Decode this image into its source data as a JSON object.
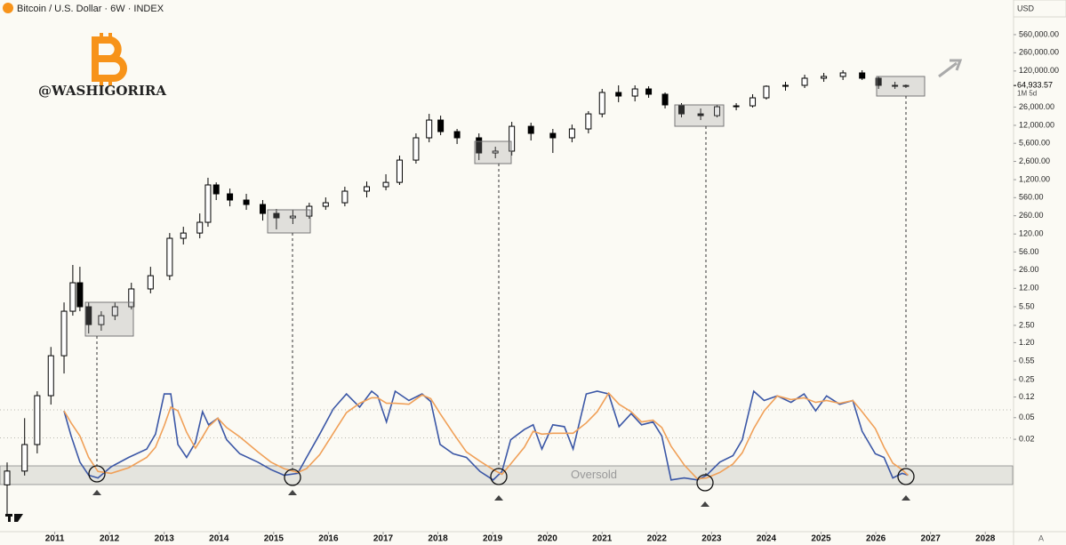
{
  "header": {
    "title": "Bitcoin / U.S. Dollar · 6W · INDEX"
  },
  "watermark": "@WASHIGORIRA",
  "auto_button": "A",
  "chart_data": [
    {
      "type": "candlestick",
      "currency": "USD",
      "log_scale": true,
      "up_color": "#ffffff",
      "down_color": "#000000",
      "x": [
        2010.13,
        2010.45,
        2010.68,
        2010.93,
        2011.17,
        2011.33,
        2011.46,
        2011.62,
        2011.85,
        2012.1,
        2012.4,
        2012.75,
        2013.1,
        2013.35,
        2013.65,
        2013.8,
        2013.95,
        2014.2,
        2014.5,
        2014.8,
        2015.05,
        2015.35,
        2015.65,
        2015.95,
        2016.3,
        2016.7,
        2017.05,
        2017.3,
        2017.6,
        2017.84,
        2018.05,
        2018.35,
        2018.75,
        2019.05,
        2019.35,
        2019.7,
        2020.1,
        2020.45,
        2020.75,
        2021.0,
        2021.3,
        2021.6,
        2021.85,
        2022.15,
        2022.45,
        2022.8,
        2023.1,
        2023.45,
        2023.75,
        2024.0,
        2024.35,
        2024.7,
        2025.05,
        2025.4,
        2025.75,
        2026.05,
        2026.35,
        2026.55
      ],
      "open": [
        0.0029,
        0.0052,
        0.016,
        0.127,
        0.69,
        4.55,
        15.2,
        5.5,
        2.58,
        3.77,
        5.5,
        11.7,
        20.5,
        100,
        125,
        197,
        960,
        658,
        506,
        419,
        287,
        238,
        256,
        388,
        451,
        737,
        890,
        1070,
        2750,
        7070,
        15000,
        9200,
        7070,
        3720,
        4020,
        11500,
        8530,
        7070,
        10300,
        19500,
        48300,
        41500,
        56100,
        44800,
        28500,
        19500,
        18100,
        26400,
        27400,
        38500,
        62800,
        65300,
        88300,
        95200,
        110700,
        88300,
        65300,
        62800
      ],
      "high": [
        0.0075,
        0.049,
        0.153,
        1.0,
        6.6,
        32.3,
        29.9,
        6.6,
        4.55,
        6.6,
        15.2,
        29.9,
        125,
        163,
        287,
        1300,
        1070,
        824,
        658,
        506,
        347,
        334,
        451,
        566,
        890,
        1110,
        1510,
        3330,
        8530,
        19500,
        18100,
        10300,
        8530,
        4850,
        13900,
        13400,
        10300,
        12400,
        21900,
        56100,
        65300,
        65300,
        62800,
        48300,
        30700,
        24500,
        28500,
        30700,
        44800,
        65300,
        75900,
        102600,
        110700,
        124000,
        124000,
        95200,
        75900,
        67800
      ],
      "low": [
        0.00078,
        0.0043,
        0.011,
        0.087,
        0.325,
        3.77,
        4.55,
        1.77,
        1.99,
        3.12,
        4.9,
        9.7,
        17.0,
        77,
        100,
        163,
        506,
        388,
        334,
        212,
        146,
        183,
        229,
        334,
        388,
        566,
        765,
        960,
        2370,
        5850,
        7900,
        5440,
        2750,
        2970,
        3330,
        6310,
        3720,
        5850,
        8530,
        16800,
        32000,
        33100,
        38500,
        24500,
        16800,
        15000,
        16800,
        22700,
        25500,
        35700,
        52100,
        58300,
        75900,
        81900,
        81900,
        56100,
        56100,
        58300
      ],
      "close": [
        0.0052,
        0.016,
        0.127,
        0.69,
        4.55,
        15.2,
        5.5,
        2.58,
        3.77,
        5.5,
        11.7,
        20.5,
        100,
        125,
        197,
        960,
        658,
        506,
        419,
        287,
        238,
        256,
        388,
        451,
        737,
        890,
        1070,
        2750,
        7070,
        15000,
        9200,
        7070,
        3720,
        4020,
        11500,
        8530,
        7070,
        10300,
        19500,
        48300,
        41500,
        56100,
        44800,
        28500,
        19500,
        18100,
        26400,
        27400,
        38500,
        62800,
        65300,
        88300,
        95200,
        110700,
        88300,
        65300,
        62800,
        64933.57
      ],
      "last_price": {
        "value": 64933.57,
        "label": "64,933.57"
      },
      "countdown": "1M 5d",
      "xlim": [
        2010,
        2028.5
      ],
      "xticks": [
        2011,
        2012,
        2013,
        2014,
        2015,
        2016,
        2017,
        2018,
        2019,
        2020,
        2021,
        2022,
        2023,
        2024,
        2025,
        2026,
        2027,
        2028
      ],
      "ylim": [
        0.00037,
        2430000
      ],
      "yticks": [
        {
          "value": 560000,
          "label": "560,000.00"
        },
        {
          "value": 260000,
          "label": "260,000.00"
        },
        {
          "value": 120000,
          "label": "120,000.00"
        },
        {
          "value": 26000,
          "label": "26,000.00"
        },
        {
          "value": 12000,
          "label": "12,000.00"
        },
        {
          "value": 5600,
          "label": "5,600.00"
        },
        {
          "value": 2600,
          "label": "2,600.00"
        },
        {
          "value": 1200,
          "label": "1,200.00"
        },
        {
          "value": 560,
          "label": "560.00"
        },
        {
          "value": 260,
          "label": "260.00"
        },
        {
          "value": 120,
          "label": "120.00"
        },
        {
          "value": 56,
          "label": "56.00"
        },
        {
          "value": 26,
          "label": "26.00"
        },
        {
          "value": 12,
          "label": "12.00"
        },
        {
          "value": 5.5,
          "label": "5.50"
        },
        {
          "value": 2.5,
          "label": "2.50"
        },
        {
          "value": 1.2,
          "label": "1.20"
        },
        0.55,
        0.25,
        0.12,
        0.05,
        0.02
      ]
    },
    {
      "type": "line",
      "x": [
        2011.17,
        2011.3,
        2011.46,
        2011.62,
        2011.79,
        2012.03,
        2012.35,
        2012.68,
        2012.84,
        2013.0,
        2013.12,
        2013.25,
        2013.41,
        2013.57,
        2013.7,
        2013.81,
        2013.98,
        2014.14,
        2014.38,
        2014.71,
        2014.95,
        2015.19,
        2015.44,
        2015.6,
        2015.84,
        2016.09,
        2016.33,
        2016.57,
        2016.79,
        2016.9,
        2017.06,
        2017.22,
        2017.47,
        2017.71,
        2017.87,
        2018.04,
        2018.28,
        2018.52,
        2018.77,
        2019.01,
        2019.17,
        2019.33,
        2019.58,
        2019.74,
        2019.9,
        2020.1,
        2020.31,
        2020.47,
        2020.71,
        2020.91,
        2021.12,
        2021.31,
        2021.53,
        2021.72,
        2021.93,
        2022.09,
        2022.26,
        2022.5,
        2022.74,
        2022.91,
        2023.15,
        2023.39,
        2023.56,
        2023.77,
        2023.96,
        2024.2,
        2024.45,
        2024.69,
        2024.9,
        2025.1,
        2025.34,
        2025.58,
        2025.75,
        2025.99,
        2026.15,
        2026.31,
        2026.48,
        2026.59
      ],
      "series": [
        {
          "color": "#3b57a6",
          "values": [
            79,
            52,
            24,
            10,
            7,
            19,
            29,
            38,
            54,
            97,
            97,
            43,
            29,
            45,
            78,
            64,
            71,
            48,
            33,
            24,
            16,
            10,
            12,
            29,
            54,
            81,
            97,
            83,
            100,
            95,
            67,
            100,
            90,
            97,
            89,
            43,
            33,
            29,
            14,
            5,
            14,
            48,
            59,
            64,
            38,
            64,
            62,
            38,
            97,
            100,
            97,
            62,
            76,
            64,
            67,
            52,
            5,
            7,
            5,
            10,
            24,
            31,
            48,
            100,
            90,
            95,
            88,
            97,
            79,
            95,
            86,
            90,
            57,
            33,
            29,
            7,
            12,
            10
          ]
        },
        {
          "color": "#f0a058",
          "values": [
            79,
            66,
            52,
            29,
            14,
            12,
            18,
            29,
            40,
            63,
            83,
            79,
            56,
            39,
            51,
            62,
            71,
            61,
            51,
            35,
            24,
            17,
            13,
            17,
            32,
            55,
            77,
            87,
            93,
            93,
            87,
            87,
            86,
            96,
            92,
            76,
            55,
            35,
            25,
            16,
            11,
            22,
            40,
            57,
            54,
            55,
            55,
            55,
            66,
            78,
            98,
            86,
            78,
            67,
            69,
            61,
            41,
            21,
            6,
            7,
            13,
            22,
            34,
            60,
            79,
            95,
            91,
            93,
            88,
            90,
            87,
            90,
            78,
            60,
            40,
            23,
            16,
            10
          ]
        }
      ],
      "ylim": [
        0,
        100
      ],
      "levels": [
        80,
        50
      ],
      "oversold_band": [
        0,
        20
      ],
      "oversold_label": "Oversold"
    }
  ]
}
